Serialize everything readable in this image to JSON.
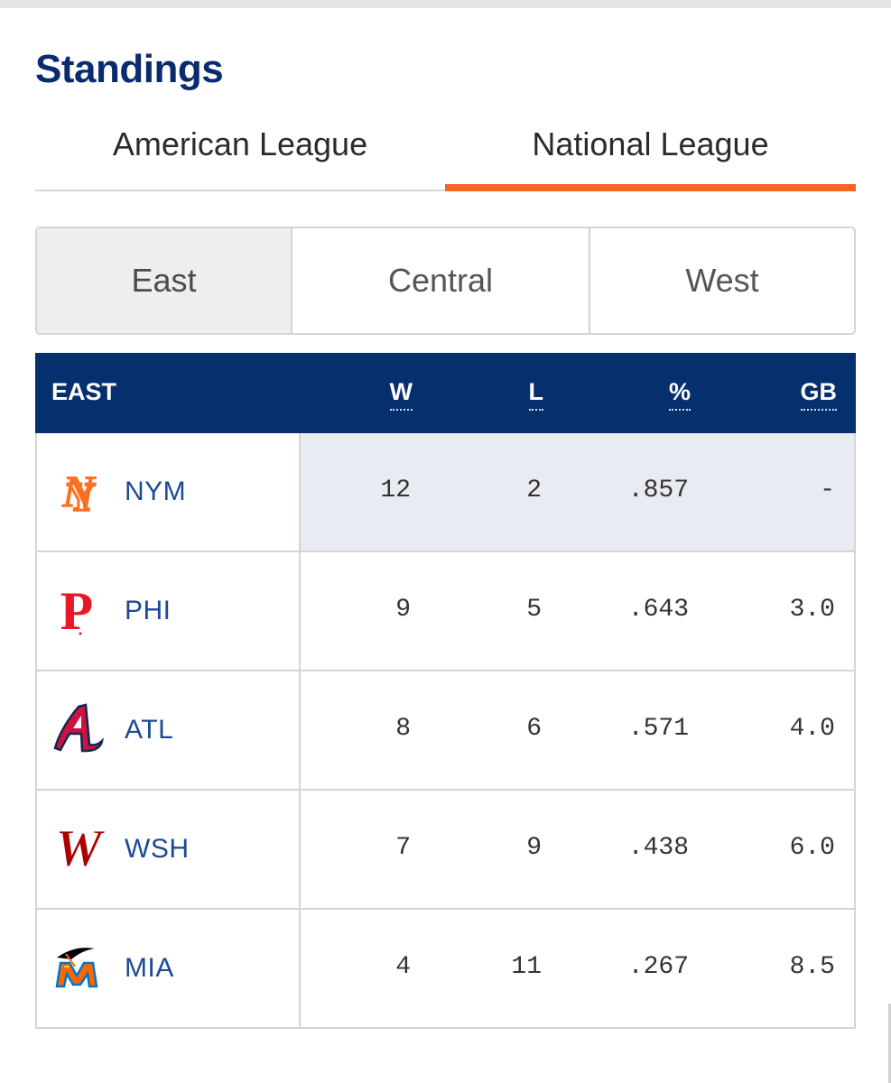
{
  "page": {
    "title": "Standings"
  },
  "league_tabs": [
    {
      "label": "American League",
      "selected": false
    },
    {
      "label": "National League",
      "selected": true
    }
  ],
  "division_tabs": [
    {
      "label": "East",
      "selected": true
    },
    {
      "label": "Central",
      "selected": false
    },
    {
      "label": "West",
      "selected": false
    }
  ],
  "table": {
    "division_label": "EAST",
    "columns": {
      "w": "W",
      "l": "L",
      "pct": "%",
      "gb": "GB"
    },
    "rows": [
      {
        "team": "NYM",
        "logo": "mets-logo-icon",
        "w": "12",
        "l": "2",
        "pct": ".857",
        "gb": "-"
      },
      {
        "team": "PHI",
        "logo": "phillies-logo-icon",
        "w": "9",
        "l": "5",
        "pct": ".643",
        "gb": "3.0"
      },
      {
        "team": "ATL",
        "logo": "braves-logo-icon",
        "w": "8",
        "l": "6",
        "pct": ".571",
        "gb": "4.0"
      },
      {
        "team": "WSH",
        "logo": "nationals-logo-icon",
        "w": "7",
        "l": "9",
        "pct": ".438",
        "gb": "6.0"
      },
      {
        "team": "MIA",
        "logo": "marlins-logo-icon",
        "w": "4",
        "l": "11",
        "pct": ".267",
        "gb": "8.5"
      }
    ]
  },
  "colors": {
    "title": "#0a2c6e",
    "accent_underline": "#f26522",
    "header_bg": "#062f6e",
    "team_link": "#1c4a92",
    "leader_highlight": "#e8ebf2"
  }
}
